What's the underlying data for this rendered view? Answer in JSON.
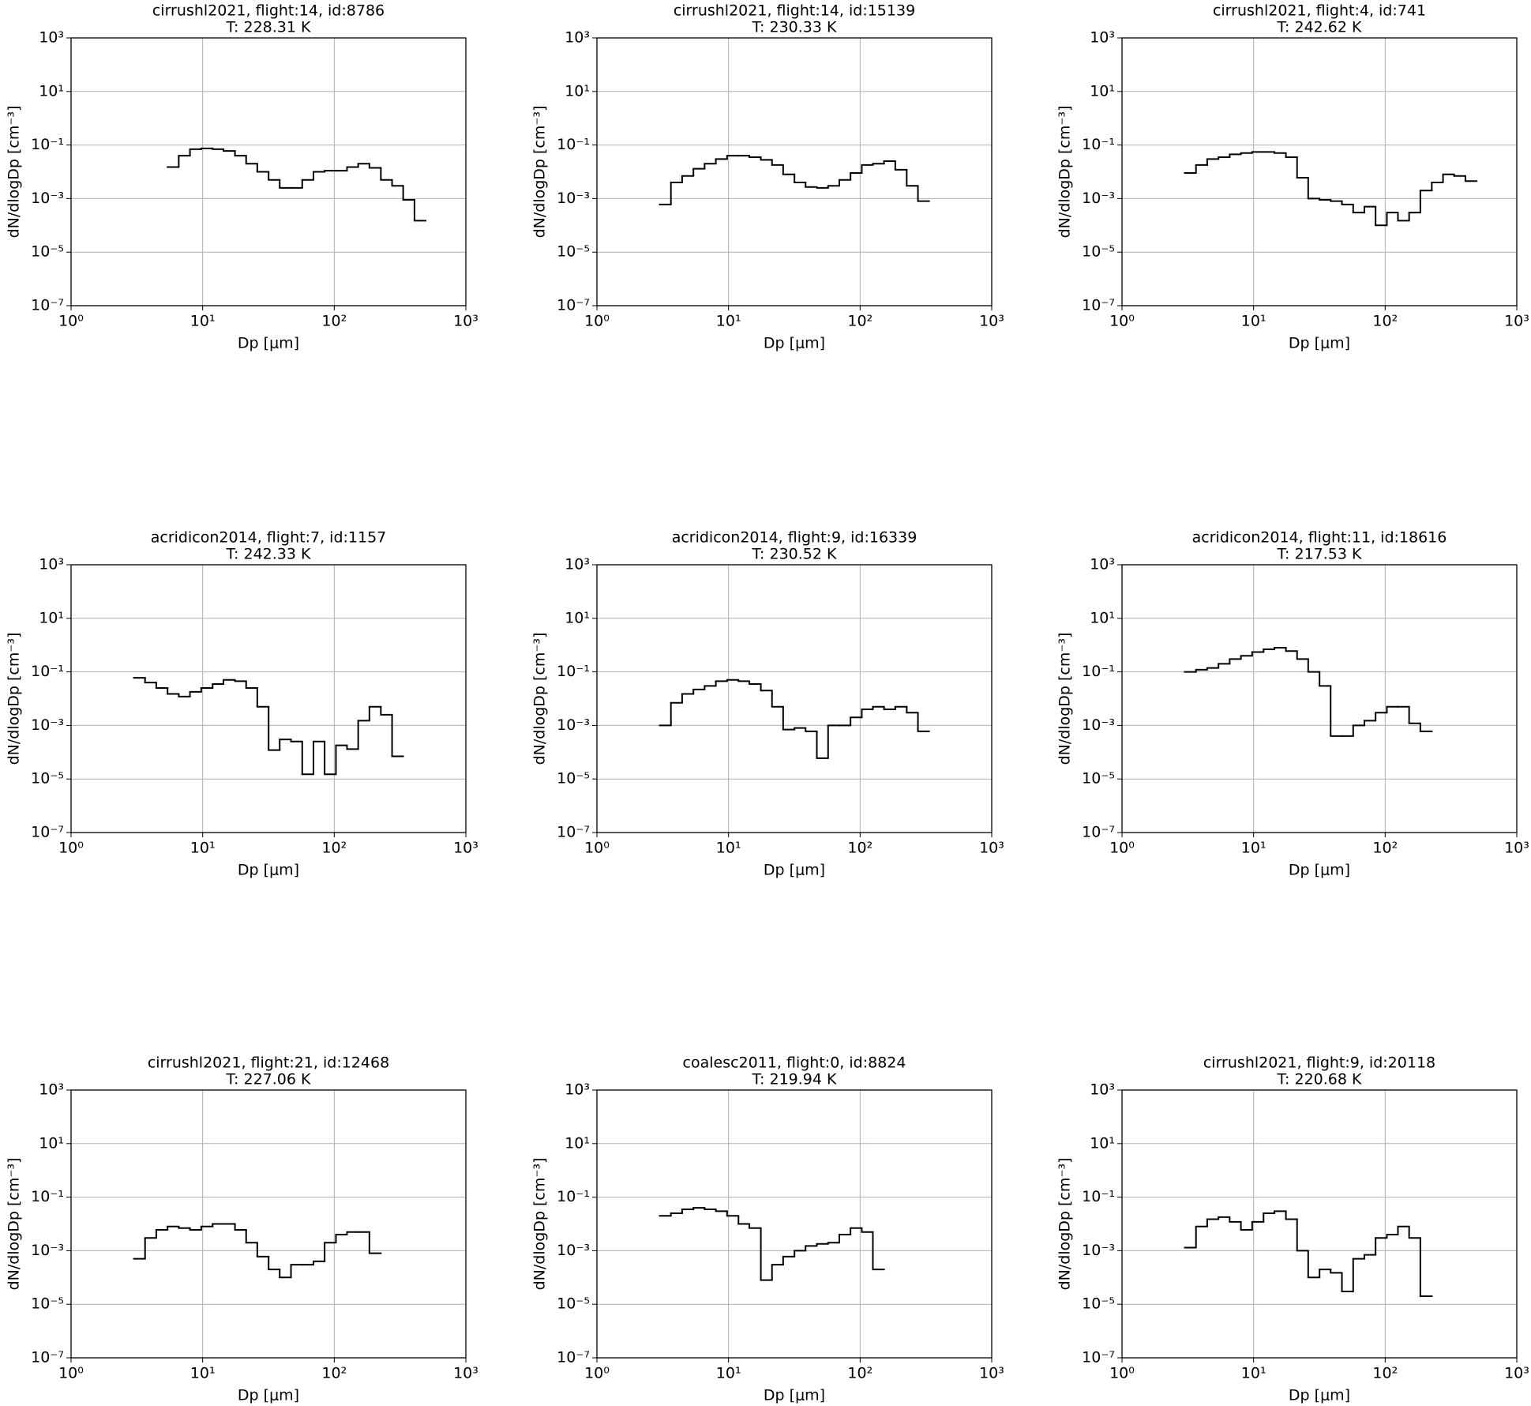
{
  "chart_data": [
    {
      "type": "histogram",
      "title": "cirrushl2021, flight:14, id:8786",
      "subtitle": "T: 228.31 K",
      "xlabel": "Dp [μm]",
      "ylabel": "dN/dlogDp [cm⁻³]",
      "xscale": "log",
      "yscale": "log",
      "grid": true,
      "color": "#000000",
      "xlim": [
        1,
        1000
      ],
      "ylim": [
        1e-07,
        1000
      ],
      "xticks": [
        {
          "value": 1,
          "label": "10⁰"
        },
        {
          "value": 10,
          "label": "10¹"
        },
        {
          "value": 100,
          "label": "10²"
        },
        {
          "value": 1000,
          "label": "10³"
        }
      ],
      "yticks": [
        {
          "value": 1e-07,
          "label": "10⁻⁷"
        },
        {
          "value": 1e-05,
          "label": "10⁻⁵"
        },
        {
          "value": 0.001,
          "label": "10⁻³"
        },
        {
          "value": 0.1,
          "label": "10⁻¹"
        },
        {
          "value": 10,
          "label": "10¹"
        },
        {
          "value": 1000,
          "label": "10³"
        }
      ],
      "bins": [
        5.41,
        6.58,
        8.01,
        9.75,
        11.9,
        14.4,
        17.6,
        21.4,
        26.0,
        31.7,
        38.5,
        46.9,
        57.1,
        69.5,
        84.5,
        103,
        125,
        152,
        185,
        226,
        275,
        334,
        407,
        495
      ],
      "values": [
        0.015,
        0.04,
        0.07,
        0.075,
        0.07,
        0.06,
        0.04,
        0.02,
        0.01,
        0.005,
        0.0025,
        0.0025,
        0.005,
        0.01,
        0.011,
        0.011,
        0.015,
        0.02,
        0.014,
        0.005,
        0.003,
        0.0009,
        0.00015
      ]
    },
    {
      "type": "histogram",
      "title": "cirrushl2021, flight:14, id:15139",
      "subtitle": "T: 230.33 K",
      "xlabel": "Dp [μm]",
      "ylabel": "dN/dlogDp [cm⁻³]",
      "xscale": "log",
      "yscale": "log",
      "grid": true,
      "color": "#000000",
      "xlim": [
        1,
        1000
      ],
      "ylim": [
        1e-07,
        1000
      ],
      "xticks": [
        {
          "value": 1,
          "label": "10⁰"
        },
        {
          "value": 10,
          "label": "10¹"
        },
        {
          "value": 100,
          "label": "10²"
        },
        {
          "value": 1000,
          "label": "10³"
        }
      ],
      "yticks": [
        {
          "value": 1e-07,
          "label": "10⁻⁷"
        },
        {
          "value": 1e-05,
          "label": "10⁻⁵"
        },
        {
          "value": 0.001,
          "label": "10⁻³"
        },
        {
          "value": 0.1,
          "label": "10⁻¹"
        },
        {
          "value": 10,
          "label": "10¹"
        },
        {
          "value": 1000,
          "label": "10³"
        }
      ],
      "bins": [
        3.0,
        3.65,
        4.44,
        5.41,
        6.58,
        8.01,
        9.75,
        11.9,
        14.4,
        17.6,
        21.4,
        26.0,
        31.7,
        38.5,
        46.9,
        57.1,
        69.5,
        84.5,
        103,
        125,
        152,
        185,
        226,
        275,
        334
      ],
      "values": [
        0.0006,
        0.004,
        0.007,
        0.013,
        0.02,
        0.03,
        0.04,
        0.04,
        0.035,
        0.028,
        0.018,
        0.008,
        0.004,
        0.0027,
        0.0025,
        0.003,
        0.005,
        0.009,
        0.018,
        0.02,
        0.025,
        0.012,
        0.003,
        0.0008
      ]
    },
    {
      "type": "histogram",
      "title": "cirrushl2021, flight:4, id:741",
      "subtitle": "T: 242.62 K",
      "xlabel": "Dp [μm]",
      "ylabel": "dN/dlogDp [cm⁻³]",
      "xscale": "log",
      "yscale": "log",
      "grid": true,
      "color": "#000000",
      "xlim": [
        1,
        1000
      ],
      "ylim": [
        1e-07,
        1000
      ],
      "xticks": [
        {
          "value": 1,
          "label": "10⁰"
        },
        {
          "value": 10,
          "label": "10¹"
        },
        {
          "value": 100,
          "label": "10²"
        },
        {
          "value": 1000,
          "label": "10³"
        }
      ],
      "yticks": [
        {
          "value": 1e-07,
          "label": "10⁻⁷"
        },
        {
          "value": 1e-05,
          "label": "10⁻⁵"
        },
        {
          "value": 0.001,
          "label": "10⁻³"
        },
        {
          "value": 0.1,
          "label": "10⁻¹"
        },
        {
          "value": 10,
          "label": "10¹"
        },
        {
          "value": 1000,
          "label": "10³"
        }
      ],
      "bins": [
        3.0,
        3.65,
        4.44,
        5.41,
        6.58,
        8.01,
        9.75,
        11.9,
        14.4,
        17.6,
        21.4,
        26.0,
        31.7,
        38.5,
        46.9,
        57.1,
        69.5,
        84.5,
        103,
        125,
        152,
        185,
        226,
        275,
        334,
        407,
        495
      ],
      "values": [
        0.009,
        0.018,
        0.03,
        0.035,
        0.045,
        0.05,
        0.055,
        0.055,
        0.05,
        0.035,
        0.006,
        0.001,
        0.0009,
        0.0008,
        0.0006,
        0.0003,
        0.0005,
        0.0001,
        0.0003,
        0.00015,
        0.0003,
        0.002,
        0.004,
        0.008,
        0.007,
        0.0045
      ]
    },
    {
      "type": "histogram",
      "title": "acridicon2014, flight:7, id:1157",
      "subtitle": "T: 242.33 K",
      "xlabel": "Dp [μm]",
      "ylabel": "dN/dlogDp [cm⁻³]",
      "xscale": "log",
      "yscale": "log",
      "grid": true,
      "color": "#000000",
      "xlim": [
        1,
        1000
      ],
      "ylim": [
        1e-07,
        1000
      ],
      "xticks": [
        {
          "value": 1,
          "label": "10⁰"
        },
        {
          "value": 10,
          "label": "10¹"
        },
        {
          "value": 100,
          "label": "10²"
        },
        {
          "value": 1000,
          "label": "10³"
        }
      ],
      "yticks": [
        {
          "value": 1e-07,
          "label": "10⁻⁷"
        },
        {
          "value": 1e-05,
          "label": "10⁻⁵"
        },
        {
          "value": 0.001,
          "label": "10⁻³"
        },
        {
          "value": 0.1,
          "label": "10⁻¹"
        },
        {
          "value": 10,
          "label": "10¹"
        },
        {
          "value": 1000,
          "label": "10³"
        }
      ],
      "bins": [
        3.0,
        3.65,
        4.44,
        5.41,
        6.58,
        8.01,
        9.75,
        11.9,
        14.4,
        17.6,
        21.4,
        26.0,
        31.7,
        38.5,
        46.9,
        57.1,
        69.5,
        84.5,
        103,
        125,
        152,
        185,
        226,
        275,
        334
      ],
      "values": [
        0.06,
        0.04,
        0.025,
        0.015,
        0.012,
        0.018,
        0.025,
        0.035,
        0.05,
        0.045,
        0.025,
        0.005,
        0.00012,
        0.0003,
        0.00025,
        1.5e-05,
        0.00025,
        1.5e-05,
        0.00018,
        0.00013,
        0.0015,
        0.005,
        0.0025,
        7e-05
      ]
    },
    {
      "type": "histogram",
      "title": "acridicon2014, flight:9, id:16339",
      "subtitle": "T: 230.52 K",
      "xlabel": "Dp [μm]",
      "ylabel": "dN/dlogDp [cm⁻³]",
      "xscale": "log",
      "yscale": "log",
      "grid": true,
      "color": "#000000",
      "xlim": [
        1,
        1000
      ],
      "ylim": [
        1e-07,
        1000
      ],
      "xticks": [
        {
          "value": 1,
          "label": "10⁰"
        },
        {
          "value": 10,
          "label": "10¹"
        },
        {
          "value": 100,
          "label": "10²"
        },
        {
          "value": 1000,
          "label": "10³"
        }
      ],
      "yticks": [
        {
          "value": 1e-07,
          "label": "10⁻⁷"
        },
        {
          "value": 1e-05,
          "label": "10⁻⁵"
        },
        {
          "value": 0.001,
          "label": "10⁻³"
        },
        {
          "value": 0.1,
          "label": "10⁻¹"
        },
        {
          "value": 10,
          "label": "10¹"
        },
        {
          "value": 1000,
          "label": "10³"
        }
      ],
      "bins": [
        3.0,
        3.65,
        4.44,
        5.41,
        6.58,
        8.01,
        9.75,
        11.9,
        14.4,
        17.6,
        21.4,
        26.0,
        31.7,
        38.5,
        46.9,
        57.1,
        69.5,
        84.5,
        103,
        125,
        152,
        185,
        226,
        275,
        334
      ],
      "values": [
        0.001,
        0.007,
        0.015,
        0.022,
        0.03,
        0.045,
        0.05,
        0.045,
        0.035,
        0.02,
        0.005,
        0.0007,
        0.0008,
        0.0006,
        6e-05,
        0.001,
        0.001,
        0.002,
        0.004,
        0.005,
        0.004,
        0.005,
        0.003,
        0.0006
      ]
    },
    {
      "type": "histogram",
      "title": "acridicon2014, flight:11, id:18616",
      "subtitle": "T: 217.53 K",
      "xlabel": "Dp [μm]",
      "ylabel": "dN/dlogDp [cm⁻³]",
      "xscale": "log",
      "yscale": "log",
      "grid": true,
      "color": "#000000",
      "xlim": [
        1,
        1000
      ],
      "ylim": [
        1e-07,
        1000
      ],
      "xticks": [
        {
          "value": 1,
          "label": "10⁰"
        },
        {
          "value": 10,
          "label": "10¹"
        },
        {
          "value": 100,
          "label": "10²"
        },
        {
          "value": 1000,
          "label": "10³"
        }
      ],
      "yticks": [
        {
          "value": 1e-07,
          "label": "10⁻⁷"
        },
        {
          "value": 1e-05,
          "label": "10⁻⁵"
        },
        {
          "value": 0.001,
          "label": "10⁻³"
        },
        {
          "value": 0.1,
          "label": "10⁻¹"
        },
        {
          "value": 10,
          "label": "10¹"
        },
        {
          "value": 1000,
          "label": "10³"
        }
      ],
      "bins": [
        3.0,
        3.65,
        4.44,
        5.41,
        6.58,
        8.01,
        9.75,
        11.9,
        14.4,
        17.6,
        21.4,
        26.0,
        31.7,
        38.5,
        46.9,
        57.1,
        69.5,
        84.5,
        103,
        125,
        152,
        185,
        226
      ],
      "values": [
        0.1,
        0.12,
        0.14,
        0.2,
        0.3,
        0.4,
        0.55,
        0.7,
        0.8,
        0.6,
        0.3,
        0.1,
        0.03,
        0.0004,
        0.0004,
        0.001,
        0.0015,
        0.003,
        0.005,
        0.005,
        0.0012,
        0.0006
      ]
    },
    {
      "type": "histogram",
      "title": "cirrushl2021, flight:21, id:12468",
      "subtitle": "T: 227.06 K",
      "xlabel": "Dp [μm]",
      "ylabel": "dN/dlogDp [cm⁻³]",
      "xscale": "log",
      "yscale": "log",
      "grid": true,
      "color": "#000000",
      "xlim": [
        1,
        1000
      ],
      "ylim": [
        1e-07,
        1000
      ],
      "xticks": [
        {
          "value": 1,
          "label": "10⁰"
        },
        {
          "value": 10,
          "label": "10¹"
        },
        {
          "value": 100,
          "label": "10²"
        },
        {
          "value": 1000,
          "label": "10³"
        }
      ],
      "yticks": [
        {
          "value": 1e-07,
          "label": "10⁻⁷"
        },
        {
          "value": 1e-05,
          "label": "10⁻⁵"
        },
        {
          "value": 0.001,
          "label": "10⁻³"
        },
        {
          "value": 0.1,
          "label": "10⁻¹"
        },
        {
          "value": 10,
          "label": "10¹"
        },
        {
          "value": 1000,
          "label": "10³"
        }
      ],
      "bins": [
        3.0,
        3.65,
        4.44,
        5.41,
        6.58,
        8.01,
        9.75,
        11.9,
        14.4,
        17.6,
        21.4,
        26.0,
        31.7,
        38.5,
        46.9,
        57.1,
        69.5,
        84.5,
        103,
        125,
        152,
        185,
        226
      ],
      "values": [
        0.0005,
        0.003,
        0.006,
        0.008,
        0.007,
        0.006,
        0.008,
        0.01,
        0.01,
        0.006,
        0.002,
        0.0006,
        0.0002,
        0.0001,
        0.0003,
        0.0003,
        0.0004,
        0.002,
        0.004,
        0.005,
        0.005,
        0.0008
      ]
    },
    {
      "type": "histogram",
      "title": "coalesc2011, flight:0, id:8824",
      "subtitle": "T: 219.94 K",
      "xlabel": "Dp [μm]",
      "ylabel": "dN/dlogDp [cm⁻³]",
      "xscale": "log",
      "yscale": "log",
      "grid": true,
      "color": "#000000",
      "xlim": [
        1,
        1000
      ],
      "ylim": [
        1e-07,
        1000
      ],
      "xticks": [
        {
          "value": 1,
          "label": "10⁰"
        },
        {
          "value": 10,
          "label": "10¹"
        },
        {
          "value": 100,
          "label": "10²"
        },
        {
          "value": 1000,
          "label": "10³"
        }
      ],
      "yticks": [
        {
          "value": 1e-07,
          "label": "10⁻⁷"
        },
        {
          "value": 1e-05,
          "label": "10⁻⁵"
        },
        {
          "value": 0.001,
          "label": "10⁻³"
        },
        {
          "value": 0.1,
          "label": "10⁻¹"
        },
        {
          "value": 10,
          "label": "10¹"
        },
        {
          "value": 1000,
          "label": "10³"
        }
      ],
      "bins": [
        3.0,
        3.65,
        4.44,
        5.41,
        6.58,
        8.01,
        9.75,
        11.9,
        14.4,
        17.6,
        21.4,
        26.0,
        31.7,
        38.5,
        46.9,
        57.1,
        69.5,
        84.5,
        103,
        125,
        152
      ],
      "values": [
        0.02,
        0.025,
        0.035,
        0.04,
        0.035,
        0.03,
        0.02,
        0.01,
        0.007,
        8e-05,
        0.0003,
        0.0006,
        0.001,
        0.0015,
        0.0018,
        0.002,
        0.004,
        0.007,
        0.005,
        0.0002
      ]
    },
    {
      "type": "histogram",
      "title": "cirrushl2021, flight:9, id:20118",
      "subtitle": "T: 220.68 K",
      "xlabel": "Dp [μm]",
      "ylabel": "dN/dlogDp [cm⁻³]",
      "xscale": "log",
      "yscale": "log",
      "grid": true,
      "color": "#000000",
      "xlim": [
        1,
        1000
      ],
      "ylim": [
        1e-07,
        1000
      ],
      "xticks": [
        {
          "value": 1,
          "label": "10⁰"
        },
        {
          "value": 10,
          "label": "10¹"
        },
        {
          "value": 100,
          "label": "10²"
        },
        {
          "value": 1000,
          "label": "10³"
        }
      ],
      "yticks": [
        {
          "value": 1e-07,
          "label": "10⁻⁷"
        },
        {
          "value": 1e-05,
          "label": "10⁻⁵"
        },
        {
          "value": 0.001,
          "label": "10⁻³"
        },
        {
          "value": 0.1,
          "label": "10⁻¹"
        },
        {
          "value": 10,
          "label": "10¹"
        },
        {
          "value": 1000,
          "label": "10³"
        }
      ],
      "bins": [
        3.0,
        3.65,
        4.44,
        5.41,
        6.58,
        8.01,
        9.75,
        11.9,
        14.4,
        17.6,
        21.4,
        26.0,
        31.7,
        38.5,
        46.9,
        57.1,
        69.5,
        84.5,
        103,
        125,
        152,
        185,
        226
      ],
      "values": [
        0.0013,
        0.008,
        0.015,
        0.018,
        0.012,
        0.006,
        0.012,
        0.025,
        0.03,
        0.015,
        0.001,
        0.0001,
        0.0002,
        0.00015,
        3e-05,
        0.0005,
        0.0007,
        0.003,
        0.004,
        0.008,
        0.003,
        2e-05
      ]
    }
  ]
}
